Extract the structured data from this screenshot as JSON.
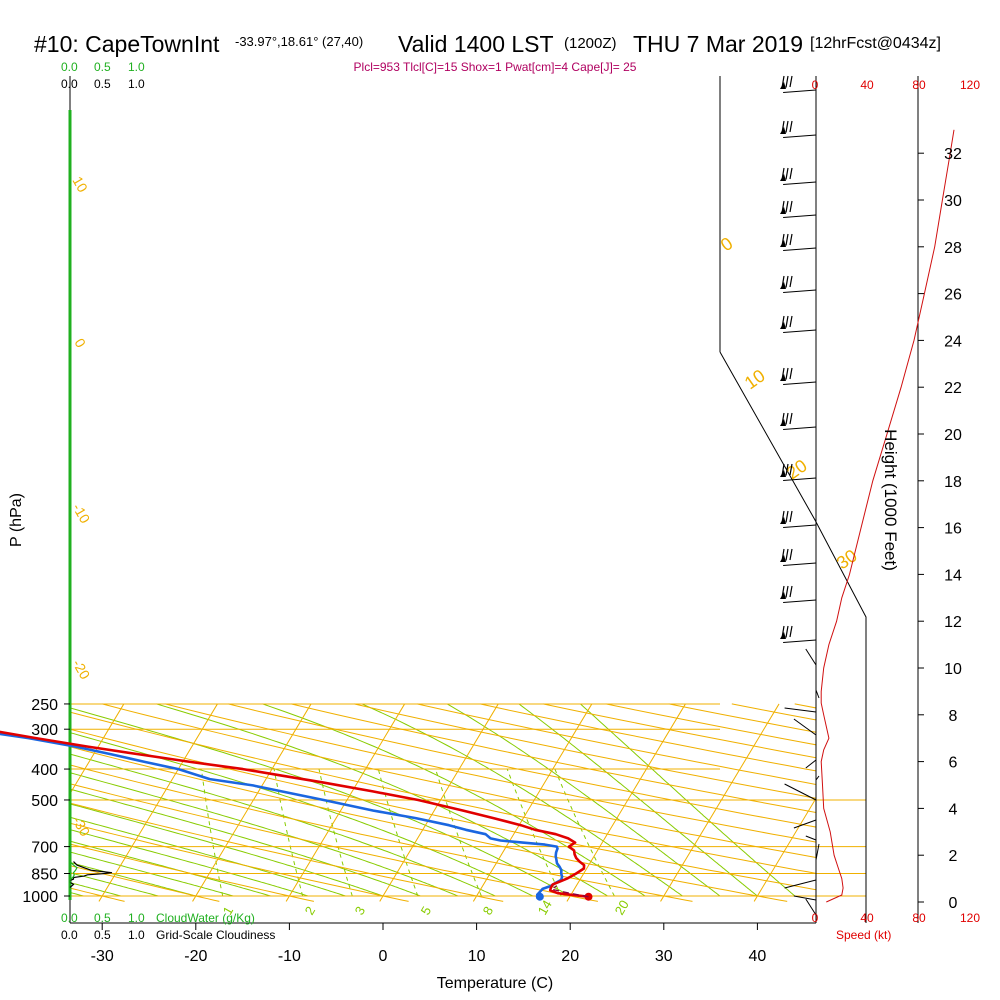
{
  "header": {
    "station": "#10: CapeTownInt",
    "location": "-33.97°,18.61° (27,40)",
    "valid": "Valid 1400 LST",
    "utc": "(1200Z)",
    "date": "THU 7 Mar 2019",
    "forecast": "[12hrFcst@0434z]",
    "indices": "Plcl=953 Tlcl[C]=15 Shox=1 Pwat[cm]=4 Cape[J]= 25"
  },
  "colors": {
    "temperature": "#e00000",
    "dewpoint": "#1a66e0",
    "isotherm": "#f0b000",
    "dry_adiabat": "#f0b000",
    "moist_adiabat": "#88cc00",
    "mixing_ratio": "#88cc00",
    "cloud": "#20b020",
    "height": "#d01010",
    "speed": "#e00000"
  },
  "chart_data": {
    "type": "skew-t",
    "xlabel": "Temperature (C)",
    "ylabel": "P (hPa)",
    "y2label": "Height (1000 Feet)",
    "x_ticks": [
      "-30",
      "-20",
      "-10",
      "0",
      "10",
      "20",
      "30",
      "40"
    ],
    "x_tick_values": [
      -30,
      -20,
      -10,
      0,
      10,
      20,
      30,
      40
    ],
    "p_ticks": [
      "250",
      "300",
      "400",
      "500",
      "700",
      "850",
      "1000"
    ],
    "p_tick_values": [
      250,
      300,
      400,
      500,
      700,
      850,
      1000
    ],
    "height_ticks": [
      "0",
      "2",
      "4",
      "6",
      "8",
      "10",
      "12",
      "14",
      "16",
      "18",
      "20",
      "22",
      "24",
      "26",
      "28",
      "30",
      "32"
    ],
    "height_tick_values": [
      0,
      2,
      4,
      6,
      8,
      10,
      12,
      14,
      16,
      18,
      20,
      22,
      24,
      26,
      28,
      30,
      32
    ],
    "dry_adiabat_labels": [
      "10",
      "0",
      "-10",
      "-20",
      "-30",
      "0",
      "10",
      "20",
      "30"
    ],
    "mixing_ratio_labels": [
      "1",
      "2",
      "3",
      "5",
      "8",
      "14",
      "20"
    ],
    "cloud_axis_top": [
      "0.0",
      "0.5",
      "1.0"
    ],
    "cloud_axis_top2": [
      "0.0",
      "0.5",
      "1.0"
    ],
    "cloud_axis_bottom": [
      "0.0",
      "0.5",
      "1.0"
    ],
    "cloud_axis_bottom2": [
      "0.0",
      "0.5",
      "1.0"
    ],
    "cloud_water_label": "CloudWater (g/Kg)",
    "cloudiness_label": "Grid-Scale Cloudiness",
    "speed_ticks": [
      "0",
      "40",
      "80",
      "120"
    ],
    "speed_ticks_bottom": [
      "0",
      "40",
      "80",
      "120"
    ],
    "speed_label": "Speed (kt)",
    "temperature": {
      "p": [
        1005,
        995,
        980,
        960,
        940,
        920,
        900,
        880,
        850,
        820,
        800,
        780,
        760,
        740,
        720,
        700,
        680,
        660,
        640,
        620,
        600,
        570,
        540,
        500,
        470,
        440,
        420,
        400,
        380,
        360,
        340,
        320,
        300,
        285,
        270,
        262
      ],
      "t": [
        22,
        20.5,
        18.5,
        17.5,
        17.4,
        17.4,
        18,
        18.6,
        19.2,
        19.7,
        19.5,
        18.8,
        18.2,
        17.8,
        17.5,
        16.7,
        17.1,
        16.1,
        14.5,
        12.0,
        10.2,
        6.8,
        3.1,
        -2.4,
        -7.8,
        -13.8,
        -18.4,
        -23.1,
        -29.1,
        -35.0,
        -41.2,
        -47.2,
        -53.3,
        -57.8,
        -62.8,
        -65.2
      ]
    },
    "dewpoint": {
      "p": [
        1005,
        990,
        970,
        950,
        930,
        910,
        890,
        870,
        850,
        830,
        810,
        790,
        770,
        750,
        730,
        710,
        700,
        690,
        680,
        670,
        660,
        640,
        620,
        600,
        570,
        540,
        500,
        450,
        430,
        400,
        380,
        360,
        340,
        320,
        300,
        280,
        262
      ],
      "t": [
        16.8,
        16.4,
        16.5,
        16.6,
        17.3,
        17.6,
        18.0,
        17.9,
        17.6,
        17.4,
        17.0,
        16.5,
        16.2,
        15.9,
        15.7,
        15.6,
        15.4,
        14.0,
        11.5,
        9.0,
        7.8,
        7.0,
        4.6,
        2.5,
        -1.5,
        -6.5,
        -12.5,
        -21.0,
        -26.0,
        -30.0,
        -34.0,
        -38.0,
        -42.5,
        -48.0,
        -55.0,
        -62.0,
        -68.0
      ]
    },
    "cloudiness": {
      "p": [
        780,
        800,
        815,
        830,
        838,
        845,
        852,
        858,
        866,
        875,
        885,
        895,
        905,
        920,
        940
      ],
      "v": [
        0.05,
        0.1,
        0.2,
        0.3,
        0.45,
        0.6,
        0.45,
        0.25,
        0.2,
        0.05,
        0.05,
        0.0,
        0.0,
        0.05,
        0.0
      ]
    },
    "cloud_water": {
      "p": [
        780,
        800,
        815,
        830,
        845,
        860,
        875,
        890,
        900,
        910
      ],
      "v": [
        0.0,
        0.05,
        0.1,
        0.08,
        0.05,
        0.06,
        0.04,
        0.0,
        0.0,
        0.0
      ]
    },
    "wind_speed": {
      "h": [
        0.0,
        0.3,
        0.6,
        1.0,
        1.5,
        2.0,
        3.0,
        4.0,
        5.0,
        6.0,
        6.5,
        7.0,
        7.5,
        8.0,
        8.5,
        9.0,
        10.0,
        11.0,
        12.0,
        13.0,
        14.0,
        16.0,
        18.0,
        20.0,
        22.0,
        24.0,
        26.0,
        28.0,
        30.0,
        31.0,
        32.0,
        33.0
      ],
      "v": [
        8,
        20,
        21,
        20,
        17,
        14,
        11,
        6,
        5,
        4,
        6,
        10,
        8,
        6,
        4,
        4,
        6,
        10,
        16,
        20,
        26,
        35,
        44,
        55,
        66,
        76,
        84,
        92,
        98,
        101,
        104,
        107
      ]
    }
  }
}
